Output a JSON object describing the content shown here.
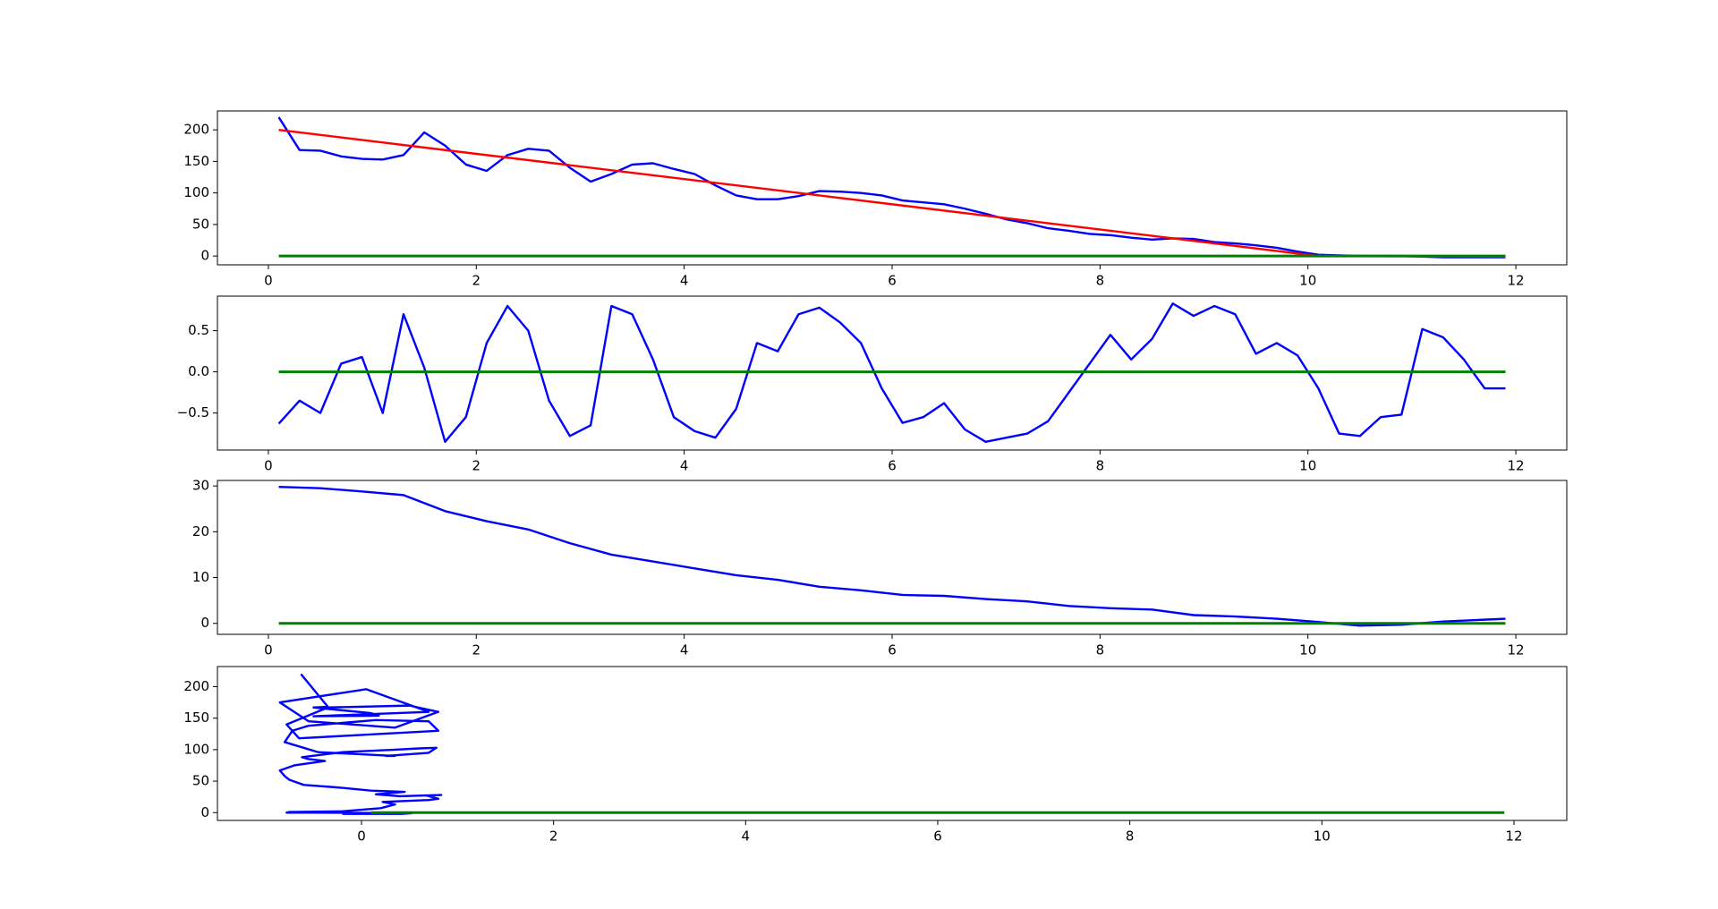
{
  "chart_data": [
    {
      "type": "line",
      "xlim": [
        -0.49,
        12.49
      ],
      "ylim": [
        -14,
        230
      ],
      "xticks": [
        0,
        2,
        4,
        6,
        8,
        10,
        12
      ],
      "yticks": [
        0,
        50,
        100,
        150,
        200
      ],
      "series": [
        {
          "color": "#0000ff",
          "x": [
            0.1,
            0.3,
            0.5,
            0.7,
            0.9,
            1.1,
            1.3,
            1.5,
            1.7,
            1.9,
            2.1,
            2.3,
            2.5,
            2.7,
            2.9,
            3.1,
            3.3,
            3.5,
            3.7,
            3.9,
            4.1,
            4.3,
            4.5,
            4.7,
            4.9,
            5.1,
            5.3,
            5.5,
            5.7,
            5.9,
            6.1,
            6.3,
            6.5,
            6.7,
            6.9,
            7.1,
            7.3,
            7.5,
            7.7,
            7.9,
            8.1,
            8.3,
            8.5,
            8.7,
            8.9,
            9.1,
            9.3,
            9.5,
            9.7,
            9.9,
            10.1,
            10.3,
            10.5,
            10.7,
            10.9,
            11.1,
            11.3,
            11.5,
            11.7,
            11.9
          ],
          "values": [
            220,
            168,
            167,
            158,
            154,
            153,
            160,
            196,
            175,
            145,
            135,
            160,
            170,
            167,
            140,
            118,
            130,
            145,
            147,
            138,
            130,
            112,
            96,
            90,
            90,
            95,
            103,
            102,
            100,
            96,
            88,
            85,
            82,
            75,
            67,
            58,
            52,
            44,
            40,
            35,
            33,
            29,
            26,
            28,
            27,
            22,
            20,
            17,
            13,
            7,
            2,
            1,
            0,
            0,
            0,
            -1,
            -2,
            -2,
            -2,
            -2
          ]
        },
        {
          "color": "#ff0000",
          "x": [
            0.1,
            10.1,
            11.9
          ],
          "values": [
            200,
            0,
            -1
          ]
        },
        {
          "color": "#008000",
          "x": [
            0.1,
            11.9
          ],
          "values": [
            0,
            0
          ]
        }
      ]
    },
    {
      "type": "line",
      "xlim": [
        -0.49,
        12.49
      ],
      "ylim": [
        -0.95,
        0.92
      ],
      "xticks": [
        0,
        2,
        4,
        6,
        8,
        10,
        12
      ],
      "yticks": [
        {
          "value": -0.5,
          "label": "−0.5"
        },
        {
          "value": 0,
          "label": "0.0"
        },
        {
          "value": 0.5,
          "label": "0.5"
        }
      ],
      "series": [
        {
          "color": "#0000ff",
          "x": [
            0.1,
            0.3,
            0.5,
            0.7,
            0.9,
            1.1,
            1.3,
            1.5,
            1.7,
            1.9,
            2.1,
            2.3,
            2.5,
            2.7,
            2.9,
            3.1,
            3.3,
            3.5,
            3.7,
            3.9,
            4.1,
            4.3,
            4.5,
            4.7,
            4.9,
            5.1,
            5.3,
            5.5,
            5.7,
            5.9,
            6.1,
            6.3,
            6.5,
            6.7,
            6.9,
            7.1,
            7.3,
            7.5,
            7.7,
            7.9,
            8.1,
            8.3,
            8.5,
            8.7,
            8.9,
            9.1,
            9.3,
            9.5,
            9.7,
            9.9,
            10.1,
            10.3,
            10.5,
            10.7,
            10.9,
            11.1,
            11.3,
            11.5,
            11.7,
            11.9
          ],
          "values": [
            -0.63,
            -0.35,
            -0.5,
            0.1,
            0.18,
            -0.5,
            0.7,
            0.05,
            -0.85,
            -0.55,
            0.35,
            0.8,
            0.5,
            -0.35,
            -0.78,
            -0.65,
            0.8,
            0.7,
            0.15,
            -0.55,
            -0.72,
            -0.8,
            -0.45,
            0.35,
            0.25,
            0.7,
            0.78,
            0.6,
            0.35,
            -0.2,
            -0.62,
            -0.55,
            -0.38,
            -0.7,
            -0.85,
            -0.8,
            -0.75,
            -0.6,
            -0.25,
            0.1,
            0.45,
            0.15,
            0.4,
            0.83,
            0.68,
            0.8,
            0.7,
            0.22,
            0.35,
            0.2,
            -0.2,
            -0.75,
            -0.78,
            -0.55,
            -0.52,
            0.52,
            0.42,
            0.15,
            -0.2,
            -0.2
          ]
        },
        {
          "color": "#008000",
          "x": [
            0.1,
            11.9
          ],
          "values": [
            0,
            0
          ]
        }
      ]
    },
    {
      "type": "line",
      "xlim": [
        -0.49,
        12.49
      ],
      "ylim": [
        -2.4,
        31.2
      ],
      "xticks": [
        0,
        2,
        4,
        6,
        8,
        10,
        12
      ],
      "yticks": [
        0,
        10,
        20,
        30
      ],
      "series": [
        {
          "color": "#0000ff",
          "x": [
            0.1,
            0.5,
            0.9,
            1.3,
            1.7,
            2.1,
            2.5,
            2.9,
            3.3,
            3.7,
            4.1,
            4.5,
            4.9,
            5.3,
            5.7,
            6.1,
            6.5,
            6.9,
            7.3,
            7.7,
            8.1,
            8.5,
            8.9,
            9.3,
            9.7,
            10.1,
            10.5,
            10.9,
            11.3,
            11.7,
            11.9
          ],
          "values": [
            29.8,
            29.5,
            28.8,
            28,
            24.5,
            22.3,
            20.5,
            17.5,
            15,
            13.5,
            12,
            10.5,
            9.5,
            8,
            7.2,
            6.2,
            6,
            5.3,
            4.8,
            3.8,
            3.3,
            3,
            1.8,
            1.5,
            1,
            0.3,
            -0.5,
            -0.3,
            0.4,
            0.8,
            1
          ]
        },
        {
          "color": "#008000",
          "x": [
            0.1,
            11.9
          ],
          "values": [
            0,
            0
          ]
        }
      ]
    },
    {
      "type": "line",
      "xlim": [
        -1.5,
        12.55
      ],
      "ylim": [
        -12.4,
        232
      ],
      "xticks": [
        0,
        2,
        4,
        6,
        8,
        10,
        12
      ],
      "yticks": [
        0,
        50,
        100,
        150,
        200
      ],
      "series": [
        {
          "color": "#0000ff",
          "x": [
            -0.63,
            -0.35,
            -0.5,
            0.1,
            0.18,
            -0.5,
            0.7,
            0.05,
            -0.85,
            -0.55,
            0.35,
            0.8,
            0.5,
            -0.35,
            -0.78,
            -0.65,
            0.8,
            0.7,
            0.15,
            -0.55,
            -0.72,
            -0.8,
            -0.45,
            0.35,
            0.25,
            0.7,
            0.78,
            0.6,
            0.35,
            -0.2,
            -0.62,
            -0.55,
            -0.38,
            -0.7,
            -0.85,
            -0.8,
            -0.75,
            -0.6,
            -0.25,
            0.1,
            0.45,
            0.15,
            0.4,
            0.83,
            0.68,
            0.8,
            0.7,
            0.22,
            0.35,
            0.2,
            -0.2,
            -0.75,
            -0.78,
            -0.55,
            -0.52,
            0.52,
            0.42,
            0.15,
            -0.2,
            -0.2
          ],
          "values": [
            220,
            168,
            167,
            158,
            154,
            153,
            160,
            196,
            175,
            145,
            135,
            160,
            170,
            167,
            140,
            118,
            130,
            145,
            147,
            138,
            130,
            112,
            96,
            90,
            90,
            95,
            103,
            102,
            100,
            96,
            88,
            85,
            82,
            75,
            67,
            58,
            52,
            44,
            40,
            35,
            33,
            29,
            26,
            28,
            27,
            22,
            20,
            17,
            13,
            7,
            2,
            1,
            0,
            0,
            0,
            -1,
            -2,
            -2,
            -2,
            -2
          ]
        },
        {
          "color": "#008000",
          "x": [
            0.1,
            11.9
          ],
          "values": [
            0,
            0
          ]
        }
      ]
    }
  ]
}
